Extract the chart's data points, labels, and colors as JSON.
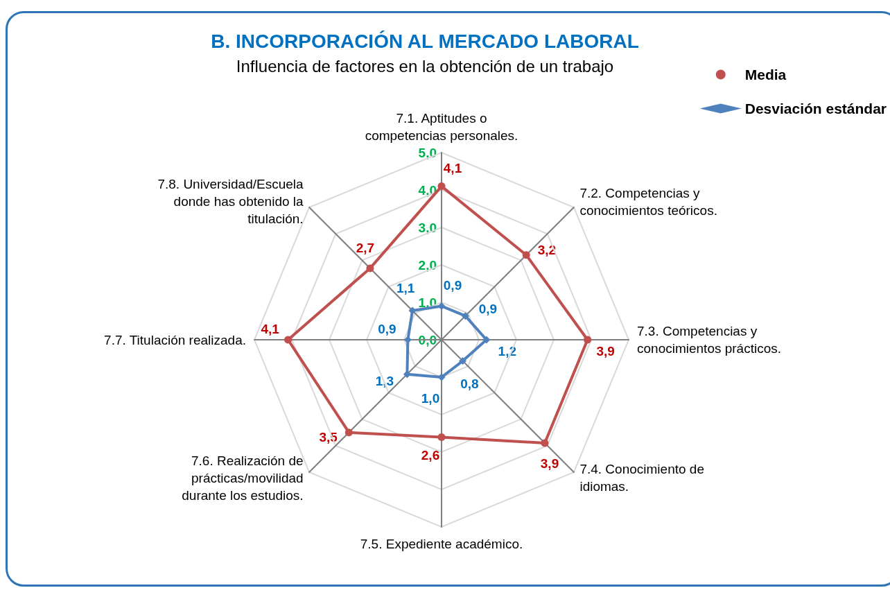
{
  "chart_data": {
    "type": "radar",
    "title": "B. INCORPORACIÓN AL MERCADO LABORAL",
    "subtitle": "Influencia de factores en la obtención de un trabajo",
    "categories": [
      "7.1. Aptitudes o competencias personales.",
      "7.2. Competencias y conocimientos teóricos.",
      "7.3. Competencias y conocimientos prácticos.",
      "7.4. Conocimiento de idiomas.",
      "7.5. Expediente académico.",
      "7.6. Realización de prácticas/movilidad durante los estudios.",
      "7.7. Titulación realizada.",
      "7.8. Universidad/Escuela donde has obtenido la titulación."
    ],
    "series": [
      {
        "name": "Media",
        "color": "#c0504d",
        "marker": "circle",
        "values": [
          4.1,
          3.2,
          3.9,
          3.9,
          2.6,
          3.5,
          4.1,
          2.7
        ],
        "value_labels": [
          "4,1",
          "3,2",
          "3,9",
          "3,9",
          "2,6",
          "3,5",
          "4,1",
          "2,7"
        ]
      },
      {
        "name": "Desviación estándar",
        "color": "#4f81bd",
        "marker": "diamond",
        "values": [
          0.9,
          0.9,
          1.2,
          0.8,
          1.0,
          1.3,
          0.9,
          1.1
        ],
        "value_labels": [
          "0,9",
          "0,9",
          "1,2",
          "0,8",
          "1,0",
          "1,3",
          "0,9",
          "1,1"
        ]
      }
    ],
    "ylim": [
      0,
      5
    ],
    "yticks": [
      {
        "value": 0,
        "label": "0,0"
      },
      {
        "value": 1,
        "label": "1,0"
      },
      {
        "value": 2,
        "label": "2,0"
      },
      {
        "value": 3,
        "label": "3,0"
      },
      {
        "value": 4,
        "label": "4,0"
      },
      {
        "value": 5,
        "label": "5,0"
      }
    ],
    "grid": true,
    "legend": "top right",
    "line_style": "solid"
  }
}
